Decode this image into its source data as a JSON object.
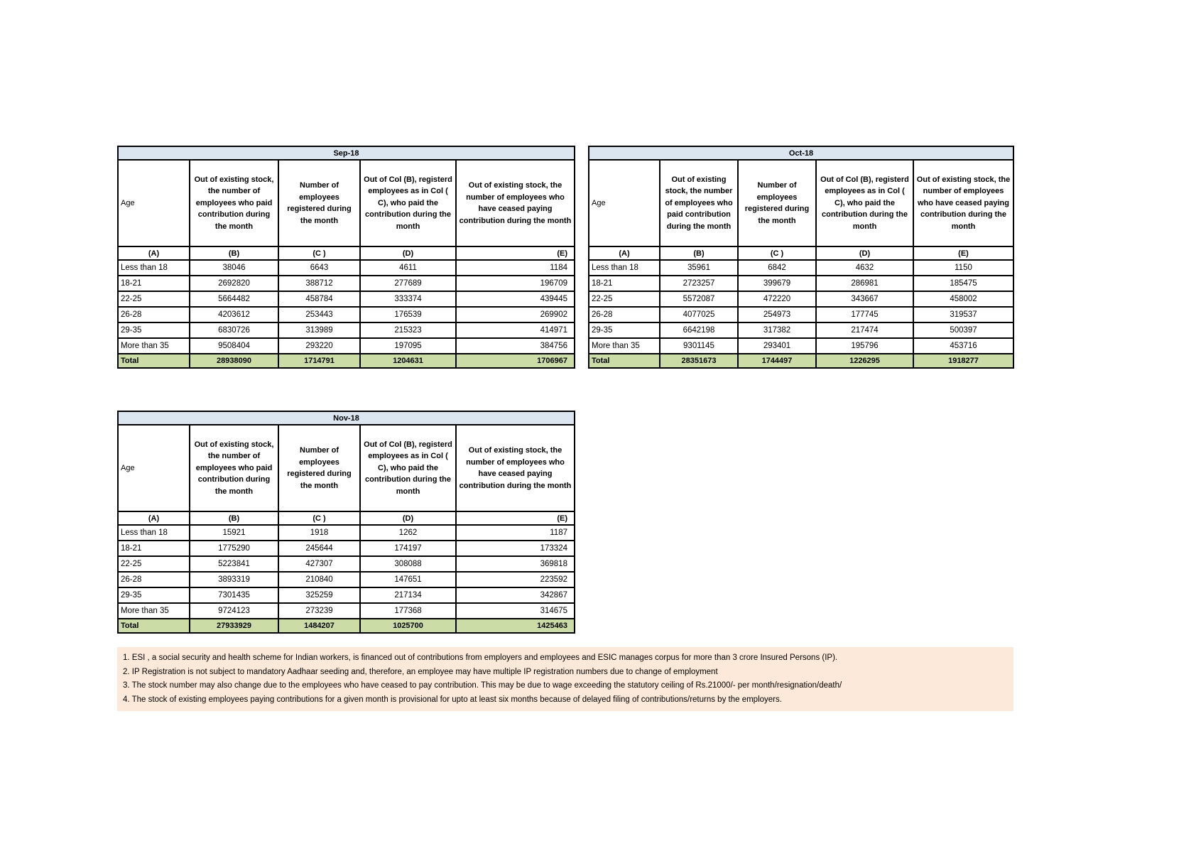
{
  "colors": {
    "month_header_bg": "#DCE6F1",
    "total_row_bg": "#CBDCA6",
    "notes_bg": "#FDE9D9",
    "border": "#000000"
  },
  "column_headers": {
    "age": "Age",
    "b": "Out of existing stock, the number of employees who paid contribution during the month",
    "c": "Number of employees registered during the month",
    "d": "Out of Col (B), registerd employees as in Col ( C), who paid the contribution during the month",
    "e": "Out of existing stock, the number of employees who have ceased paying contribution during the month"
  },
  "sub_headers": [
    "(A)",
    "(B)",
    "(C )",
    "(D)",
    "(E)"
  ],
  "tables": [
    {
      "month": "Sep-18",
      "rows": [
        {
          "age": "Less than 18",
          "b": "38046",
          "c": "6643",
          "d": "4611",
          "e": "1184"
        },
        {
          "age": "18-21",
          "b": "2692820",
          "c": "388712",
          "d": "277689",
          "e": "196709"
        },
        {
          "age": "22-25",
          "b": "5664482",
          "c": "458784",
          "d": "333374",
          "e": "439445"
        },
        {
          "age": "26-28",
          "b": "4203612",
          "c": "253443",
          "d": "176539",
          "e": "269902"
        },
        {
          "age": "29-35",
          "b": "6830726",
          "c": "313989",
          "d": "215323",
          "e": "414971"
        },
        {
          "age": "More than 35",
          "b": "9508404",
          "c": "293220",
          "d": "197095",
          "e": "384756"
        }
      ],
      "total": {
        "label": "Total",
        "b": "28938090",
        "c": "1714791",
        "d": "1204631",
        "e": "1706967"
      }
    },
    {
      "month": "Oct-18",
      "rows": [
        {
          "age": "Less than 18",
          "b": "35961",
          "c": "6842",
          "d": "4632",
          "e": "1150"
        },
        {
          "age": "18-21",
          "b": "2723257",
          "c": "399679",
          "d": "286981",
          "e": "185475"
        },
        {
          "age": "22-25",
          "b": "5572087",
          "c": "472220",
          "d": "343667",
          "e": "458002"
        },
        {
          "age": "26-28",
          "b": "4077025",
          "c": "254973",
          "d": "177745",
          "e": "319537"
        },
        {
          "age": "29-35",
          "b": "6642198",
          "c": "317382",
          "d": "217474",
          "e": "500397"
        },
        {
          "age": "More than 35",
          "b": "9301145",
          "c": "293401",
          "d": "195796",
          "e": "453716"
        }
      ],
      "total": {
        "label": "Total",
        "b": "28351673",
        "c": "1744497",
        "d": "1226295",
        "e": "1918277"
      }
    },
    {
      "month": "Nov-18",
      "rows": [
        {
          "age": "Less than 18",
          "b": "15921",
          "c": "1918",
          "d": "1262",
          "e": "1187"
        },
        {
          "age": "18-21",
          "b": "1775290",
          "c": "245644",
          "d": "174197",
          "e": "173324"
        },
        {
          "age": "22-25",
          "b": "5223841",
          "c": "427307",
          "d": "308088",
          "e": "369818"
        },
        {
          "age": "26-28",
          "b": "3893319",
          "c": "210840",
          "d": "147651",
          "e": "223592"
        },
        {
          "age": "29-35",
          "b": "7301435",
          "c": "325259",
          "d": "217134",
          "e": "342867"
        },
        {
          "age": "More than 35",
          "b": "9724123",
          "c": "273239",
          "d": "177368",
          "e": "314675"
        }
      ],
      "total": {
        "label": "Total",
        "b": "27933929",
        "c": "1484207",
        "d": "1025700",
        "e": "1425463"
      }
    }
  ],
  "notes": [
    "1. ESI , a social security and health scheme for Indian workers, is financed out of contributions from employers and employees and ESIC manages corpus for more than 3 crore Insured Persons (IP).",
    "2. IP Registration is not subject to mandatory Aadhaar seeding and, therefore, an employee may have multiple IP registration numbers due to change of employment",
    "3. The stock number may also change due to the employees who have ceased to pay contribution. This may be due to wage exceeding the statutory ceiling of Rs.21000/- per month/resignation/death/",
    "4. The stock of existing employees paying contributions for a given month is provisional for upto at least six months because of delayed filing of contributions/returns by the employers."
  ]
}
